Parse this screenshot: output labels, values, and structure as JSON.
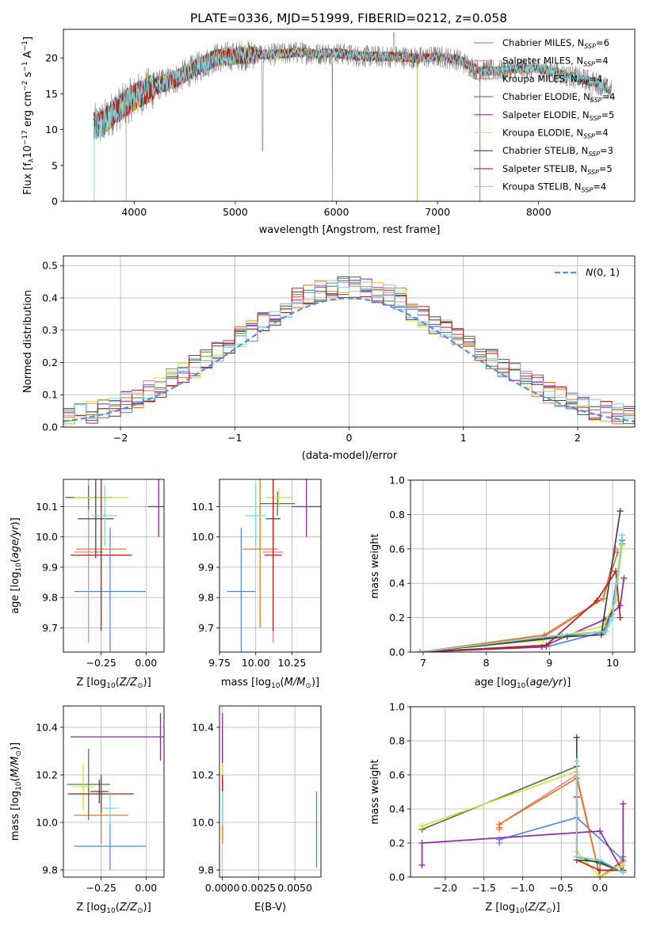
{
  "figure_title": "PLATE=0336, MJD=51999, FIBERID=0212, z=0.058",
  "colors": {
    "Chabrier MILES": "#5b86d6",
    "Salpeter MILES": "#e88a96",
    "Kroupa MILES": "#e07a1f",
    "Chabrier ELODIE": "#4e7a4e",
    "Salpeter ELODIE": "#8e2ba3",
    "Kroupa ELODIE": "#d4e048",
    "Chabrier STELIB": "#444444",
    "Salpeter STELIB": "#b22222",
    "Kroupa STELIB": "#7fd6e0",
    "data": "#808080",
    "gaussian": "#5b8dd6"
  },
  "chart_data": [
    {
      "id": "spectrum",
      "type": "line",
      "title": "PLATE=0336, MJD=51999, FIBERID=0212, z=0.058",
      "xlabel": "wavelength [Angstrom, rest frame]",
      "ylabel": "Flux [f_λ 10^-17 erg cm^-2 s^-1 A^-1]",
      "xlim": [
        3300,
        8950
      ],
      "ylim": [
        0,
        24
      ],
      "xticks": [
        4000,
        5000,
        6000,
        7000,
        8000
      ],
      "yticks": [
        0,
        5,
        10,
        15,
        20
      ],
      "legend_position": "top-right",
      "continuum_x": [
        3600,
        3700,
        3800,
        3900,
        4000,
        4200,
        4400,
        4600,
        4800,
        5000,
        5200,
        5400,
        5600,
        5800,
        6000,
        6200,
        6400,
        6600,
        6800,
        7000,
        7200,
        7400,
        7600,
        7800,
        8000,
        8200,
        8400,
        8600,
        8700
      ],
      "continuum_y": [
        10.5,
        11,
        12.5,
        13.5,
        14.5,
        16,
        17,
        18.5,
        20,
        20.3,
        20.5,
        20.5,
        20.8,
        20.6,
        20.7,
        20.3,
        20.2,
        20.2,
        20.0,
        20.2,
        19.8,
        18.3,
        18.2,
        18.5,
        18.5,
        17.8,
        17.2,
        16.4,
        15.4
      ],
      "series": [
        {
          "name": "Chabrier MILES, N_SSP=6"
        },
        {
          "name": "Salpeter MILES, N_SSP=4"
        },
        {
          "name": "Kroupa MILES, N_SSP=4"
        },
        {
          "name": "Chabrier ELODIE, N_SSP=4"
        },
        {
          "name": "Salpeter ELODIE, N_SSP=5"
        },
        {
          "name": "Kroupa ELODIE, N_SSP=4"
        },
        {
          "name": "Chabrier STELIB, N_SSP=3"
        },
        {
          "name": "Salpeter STELIB, N_SSP=5"
        },
        {
          "name": "Kroupa STELIB, N_SSP=4"
        }
      ]
    },
    {
      "id": "residuals",
      "type": "histogram",
      "xlabel": "(data-model)/error",
      "ylabel": "Normed distribution",
      "xlim": [
        -2.5,
        2.5
      ],
      "ylim": [
        0,
        0.53
      ],
      "xticks": [
        -2,
        -1,
        0,
        1,
        2
      ],
      "yticks": [
        0.0,
        0.1,
        0.2,
        0.3,
        0.4,
        0.5
      ],
      "gaussian_label": "N(0,1)",
      "legend_position": "top-right",
      "grid": true,
      "bin_width": 0.1,
      "bins_start": -2.5
    },
    {
      "id": "age-vs-Z",
      "type": "errorbar",
      "xlabel": "Z [log10(Z/Z⊙)]",
      "ylabel": "age  [log10(age/yr)]",
      "xlim": [
        -0.46,
        0.1
      ],
      "ylim": [
        9.62,
        10.19
      ],
      "xticks": [
        -0.25,
        0.0
      ],
      "yticks": [
        9.7,
        9.8,
        9.9,
        10.0,
        10.1
      ],
      "grid": true,
      "points": [
        {
          "model": "Chabrier MILES",
          "x": -0.2,
          "xerr": 0.2,
          "y": 9.82,
          "yerr": 0.21
        },
        {
          "model": "Salpeter MILES",
          "x": -0.32,
          "xerr": 0.08,
          "y": 9.95,
          "yerr": 0.3
        },
        {
          "model": "Kroupa MILES",
          "x": -0.25,
          "xerr": 0.14,
          "y": 9.96,
          "yerr": 0.26
        },
        {
          "model": "Chabrier ELODIE",
          "x": -0.32,
          "xerr": 0.13,
          "y": 10.13,
          "yerr": 0.04
        },
        {
          "model": "Salpeter ELODIE",
          "x": 0.07,
          "xerr": 0.06,
          "y": 10.1,
          "yerr": 0.1
        },
        {
          "model": "Kroupa ELODIE",
          "x": -0.25,
          "xerr": 0.15,
          "y": 10.13,
          "yerr": 0.03
        },
        {
          "model": "Chabrier STELIB",
          "x": -0.28,
          "xerr": 0.1,
          "y": 10.06,
          "yerr": 0.13
        },
        {
          "model": "Salpeter STELIB",
          "x": -0.25,
          "xerr": 0.17,
          "y": 9.94,
          "yerr": 0.25
        },
        {
          "model": "Kroupa STELIB",
          "x": -0.23,
          "xerr": 0.07,
          "y": 10.07,
          "yerr": 0.1
        }
      ]
    },
    {
      "id": "age-vs-mass",
      "type": "errorbar",
      "xlabel": "mass [log10(M/M⊙)]",
      "xlim": [
        9.75,
        10.45
      ],
      "ylim": [
        9.62,
        10.19
      ],
      "xticks": [
        9.75,
        10.0,
        10.25
      ],
      "yticks": [
        9.7,
        9.8,
        9.9,
        10.0,
        10.1
      ],
      "grid": true,
      "points": [
        {
          "model": "Chabrier MILES",
          "x": 9.9,
          "xerr": 0.1,
          "y": 9.82,
          "yerr": 0.21
        },
        {
          "model": "Salpeter MILES",
          "x": 10.12,
          "xerr": 0.07,
          "y": 9.95,
          "yerr": 0.3
        },
        {
          "model": "Kroupa MILES",
          "x": 10.03,
          "xerr": 0.12,
          "y": 9.96,
          "yerr": 0.26
        },
        {
          "model": "Chabrier ELODIE",
          "x": 10.15,
          "xerr": 0.12,
          "y": 10.11,
          "yerr": 0.04
        },
        {
          "model": "Salpeter ELODIE",
          "x": 10.35,
          "xerr": 0.1,
          "y": 10.1,
          "yerr": 0.1
        },
        {
          "model": "Kroupa ELODIE",
          "x": 10.16,
          "xerr": 0.09,
          "y": 10.13,
          "yerr": 0.03
        },
        {
          "model": "Chabrier STELIB",
          "x": 10.12,
          "xerr": 0.05,
          "y": 10.06,
          "yerr": 0.13
        },
        {
          "model": "Salpeter STELIB",
          "x": 10.12,
          "xerr": 0.06,
          "y": 9.94,
          "yerr": 0.25
        },
        {
          "model": "Kroupa STELIB",
          "x": 10.0,
          "xerr": 0.07,
          "y": 10.07,
          "yerr": 0.1
        }
      ]
    },
    {
      "id": "weight-vs-age",
      "type": "line",
      "xlabel": "age  [log10(age/yr)]",
      "ylabel": "mass weight",
      "xlim": [
        6.8,
        10.35
      ],
      "ylim": [
        0,
        1
      ],
      "xticks": [
        7,
        8,
        9,
        10
      ],
      "yticks": [
        0.0,
        0.2,
        0.4,
        0.6,
        0.8,
        1.0
      ],
      "grid": true,
      "series": [
        {
          "model": "Chabrier MILES",
          "x": [
            6.95,
            8.95,
            9.88,
            9.98,
            10.15
          ],
          "y": [
            0.0,
            0.03,
            0.12,
            0.22,
            0.63
          ]
        },
        {
          "model": "Salpeter MILES",
          "x": [
            6.95,
            8.92,
            9.85,
            10.05
          ],
          "y": [
            0.0,
            0.09,
            0.31,
            0.6
          ]
        },
        {
          "model": "Kroupa MILES",
          "x": [
            6.95,
            8.92,
            9.85,
            10.08
          ],
          "y": [
            0.0,
            0.1,
            0.31,
            0.58
          ]
        },
        {
          "model": "Chabrier ELODIE",
          "x": [
            6.95,
            8.9,
            9.85,
            10.05,
            10.15
          ],
          "y": [
            0.0,
            0.08,
            0.12,
            0.3,
            0.65
          ]
        },
        {
          "model": "Salpeter ELODIE",
          "x": [
            6.95,
            8.88,
            9.88,
            10.12,
            10.18
          ],
          "y": [
            0.0,
            0.03,
            0.19,
            0.27,
            0.43
          ]
        },
        {
          "model": "Kroupa ELODIE",
          "x": [
            6.95,
            8.9,
            9.85,
            10.05,
            10.15
          ],
          "y": [
            0.0,
            0.07,
            0.15,
            0.3,
            0.62
          ]
        },
        {
          "model": "Chabrier STELIB",
          "x": [
            6.95,
            9.28,
            9.82,
            10.12
          ],
          "y": [
            0.0,
            0.09,
            0.1,
            0.82
          ]
        },
        {
          "model": "Salpeter STELIB",
          "x": [
            6.95,
            8.95,
            9.75,
            10.05,
            10.12
          ],
          "y": [
            0.0,
            0.04,
            0.3,
            0.47,
            0.2
          ]
        },
        {
          "model": "Kroupa STELIB",
          "x": [
            6.95,
            9.2,
            9.9,
            10.0,
            10.15
          ],
          "y": [
            0.0,
            0.1,
            0.12,
            0.2,
            0.68
          ]
        }
      ]
    },
    {
      "id": "mass-vs-Z",
      "type": "errorbar",
      "xlabel": "Z [log10(Z/Z⊙)]",
      "ylabel": "mass [log10(M/M⊙)]",
      "xlim": [
        -0.46,
        0.1
      ],
      "ylim": [
        9.77,
        10.49
      ],
      "xticks": [
        -0.25,
        0.0
      ],
      "yticks": [
        9.8,
        10.0,
        10.2,
        10.4
      ],
      "grid": true,
      "points": [
        {
          "model": "Chabrier MILES",
          "x": -0.2,
          "xerr": 0.2,
          "y": 9.9,
          "yerr": 0.1
        },
        {
          "model": "Salpeter MILES",
          "x": -0.32,
          "xerr": 0.12,
          "y": 10.12,
          "yerr": 0.06
        },
        {
          "model": "Kroupa MILES",
          "x": -0.25,
          "xerr": 0.15,
          "y": 10.03,
          "yerr": 0.12
        },
        {
          "model": "Chabrier ELODIE",
          "x": -0.32,
          "xerr": 0.12,
          "y": 10.16,
          "yerr": 0.15
        },
        {
          "model": "Salpeter ELODIE",
          "x": 0.08,
          "xerr": 0.5,
          "y": 10.36,
          "yerr": 0.1
        },
        {
          "model": "Kroupa ELODIE",
          "x": -0.35,
          "xerr": 0.06,
          "y": 10.15,
          "yerr": 0.1
        },
        {
          "model": "Chabrier STELIB",
          "x": -0.26,
          "xerr": 0.05,
          "y": 10.13,
          "yerr": 0.05
        },
        {
          "model": "Salpeter STELIB",
          "x": -0.25,
          "xerr": 0.18,
          "y": 10.12,
          "yerr": 0.08
        },
        {
          "model": "Kroupa STELIB",
          "x": -0.2,
          "xerr": 0.05,
          "y": 10.06,
          "yerr": 0.07
        }
      ]
    },
    {
      "id": "mass-vs-EBV",
      "type": "errorbar",
      "xlabel": "E(B-V)",
      "xlim": [
        -0.0002,
        0.0068
      ],
      "ylim": [
        9.77,
        10.49
      ],
      "xticks": [
        0.0,
        0.0025,
        0.005
      ],
      "xtick_labels": [
        "0.0000",
        "0.0025",
        "0.0050"
      ],
      "yticks": [
        9.8,
        10.0,
        10.2,
        10.4
      ],
      "grid": true,
      "points": [
        {
          "model": "Chabrier MILES",
          "x": 0.0065,
          "y": 9.97,
          "yerr": 0.16
        },
        {
          "model": "Salpeter MILES",
          "x": 0.0,
          "y": 10.12,
          "yerr": 0.06
        },
        {
          "model": "Kroupa MILES",
          "x": 0.0,
          "y": 10.03,
          "yerr": 0.12
        },
        {
          "model": "Chabrier ELODIE",
          "x": 0.0,
          "y": 10.16,
          "yerr": 0.15
        },
        {
          "model": "Salpeter ELODIE",
          "x": 0.0,
          "y": 10.35,
          "yerr": 0.11
        },
        {
          "model": "Kroupa ELODIE",
          "x": 0.0,
          "y": 10.15,
          "yerr": 0.1
        },
        {
          "model": "Chabrier STELIB",
          "x": 0.0,
          "y": 10.13,
          "yerr": 0.05
        },
        {
          "model": "Salpeter STELIB",
          "x": 0.0,
          "y": 10.12,
          "yerr": 0.08
        },
        {
          "model": "Kroupa STELIB",
          "x": 0.0,
          "y": 10.06,
          "yerr": 0.07
        }
      ]
    },
    {
      "id": "weight-vs-Z",
      "type": "line",
      "xlabel": "Z [log10(Z/Z⊙)]",
      "ylabel": "mass weight",
      "xlim": [
        -2.45,
        0.45
      ],
      "ylim": [
        0,
        1
      ],
      "xticks": [
        -2.0,
        -1.5,
        -1.0,
        -0.5,
        0.0
      ],
      "yticks": [
        0.0,
        0.2,
        0.4,
        0.6,
        0.8,
        1.0
      ],
      "grid": true,
      "series": [
        {
          "model": "Chabrier MILES",
          "x": [
            -1.3,
            -1.3,
            -0.3,
            0.3,
            0.3
          ],
          "y": [
            0.2,
            0.22,
            0.35,
            0.1,
            0.12
          ]
        },
        {
          "model": "Salpeter MILES",
          "x": [
            -1.3,
            -1.3,
            -0.3,
            0.0,
            0.3
          ],
          "y": [
            0.28,
            0.31,
            0.6,
            0.0,
            0.09
          ]
        },
        {
          "model": "Kroupa MILES",
          "x": [
            -1.3,
            -1.3,
            -0.3,
            0.0,
            0.3
          ],
          "y": [
            0.29,
            0.31,
            0.58,
            0.0,
            0.1
          ]
        },
        {
          "model": "Chabrier ELODIE",
          "x": [
            -2.3,
            -0.3,
            -0.3,
            0.0,
            0.3
          ],
          "y": [
            0.28,
            0.65,
            0.12,
            0.08,
            0.03
          ]
        },
        {
          "model": "Salpeter ELODIE",
          "x": [
            -2.3,
            -2.3,
            -0.0,
            0.3,
            0.3
          ],
          "y": [
            0.07,
            0.2,
            0.27,
            0.03,
            0.43
          ]
        },
        {
          "model": "Kroupa ELODIE",
          "x": [
            -2.3,
            -0.3,
            -0.3,
            0.0,
            0.3
          ],
          "y": [
            0.3,
            0.62,
            0.15,
            0.0,
            0.07
          ]
        },
        {
          "model": "Chabrier STELIB",
          "x": [
            -0.3,
            -0.3,
            0.0,
            0.3
          ],
          "y": [
            0.82,
            0.1,
            0.09,
            0.03
          ]
        },
        {
          "model": "Salpeter STELIB",
          "x": [
            -0.3,
            -0.3,
            0.0,
            0.3
          ],
          "y": [
            0.47,
            0.1,
            0.04,
            0.04
          ]
        },
        {
          "model": "Kroupa STELIB",
          "x": [
            -0.3,
            -0.3,
            0.0,
            0.3
          ],
          "y": [
            0.68,
            0.12,
            0.1,
            0.03
          ]
        }
      ]
    }
  ]
}
